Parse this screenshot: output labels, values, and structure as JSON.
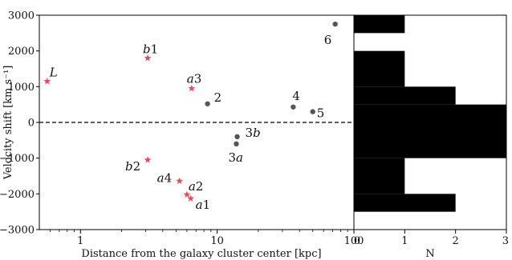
{
  "chart_data": [
    {
      "type": "scatter",
      "title": "",
      "xlabel": "Distance from the galaxy cluster center [kpc]",
      "ylabel": "Velocity shift [km s⁻¹]",
      "xscale": "log",
      "xlim": [
        0.5,
        100
      ],
      "ylim": [
        -3000,
        3000
      ],
      "xticks": [
        {
          "value": 1,
          "label": "1"
        },
        {
          "value": 10,
          "label": "10"
        },
        {
          "value": 100,
          "label": "100"
        }
      ],
      "yticks": [
        {
          "value": -3000,
          "label": "−3000"
        },
        {
          "value": -2000,
          "label": "−2000"
        },
        {
          "value": -1000,
          "label": "−1000"
        },
        {
          "value": 0,
          "label": "0"
        },
        {
          "value": 1000,
          "label": "1000"
        },
        {
          "value": 2000,
          "label": "2000"
        },
        {
          "value": 3000,
          "label": "3000"
        }
      ],
      "reference_line": {
        "y": 0,
        "style": "dashed"
      },
      "series": [
        {
          "marker": "star",
          "color": "#e84a5f",
          "points": [
            {
              "x": 0.57,
              "y": 1150,
              "label": "L"
            },
            {
              "x": 3.1,
              "y": 1800,
              "label": "b1"
            },
            {
              "x": 6.5,
              "y": 950,
              "label": "a3"
            },
            {
              "x": 3.1,
              "y": -1050,
              "label": "b2"
            },
            {
              "x": 5.3,
              "y": -1640,
              "label": "a4"
            },
            {
              "x": 6.0,
              "y": -2020,
              "label": "a2"
            },
            {
              "x": 6.4,
              "y": -2130,
              "label": "a1"
            }
          ]
        },
        {
          "marker": "circle",
          "color": "#555555",
          "points": [
            {
              "x": 8.5,
              "y": 520,
              "label": "2"
            },
            {
              "x": 14.0,
              "y": -400,
              "label": "3b"
            },
            {
              "x": 13.8,
              "y": -600,
              "label": "3a"
            },
            {
              "x": 36.0,
              "y": 430,
              "label": "4"
            },
            {
              "x": 50.0,
              "y": 300,
              "label": "5"
            },
            {
              "x": 73.0,
              "y": 2750,
              "label": "6"
            }
          ]
        }
      ]
    },
    {
      "type": "bar",
      "orientation": "horizontal",
      "xlabel": "N",
      "xlim": [
        0,
        3
      ],
      "ylim": [
        -3000,
        3000
      ],
      "xticks": [
        {
          "value": 0,
          "label": "0"
        },
        {
          "value": 1,
          "label": "1"
        },
        {
          "value": 2,
          "label": "2"
        },
        {
          "value": 3,
          "label": "3"
        }
      ],
      "bar_color": "#000000",
      "bins": [
        {
          "y_low": -2500,
          "y_high": -2000,
          "count": 2
        },
        {
          "y_low": -2000,
          "y_high": -1000,
          "count": 1
        },
        {
          "y_low": -1000,
          "y_high": 500,
          "count": 3
        },
        {
          "y_low": 500,
          "y_high": 1000,
          "count": 2
        },
        {
          "y_low": 1000,
          "y_high": 2000,
          "count": 1
        },
        {
          "y_low": 2500,
          "y_high": 3000,
          "count": 1
        }
      ]
    }
  ]
}
